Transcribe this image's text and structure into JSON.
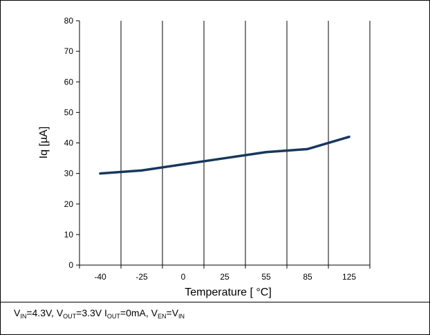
{
  "chart_data": {
    "type": "line",
    "title": "",
    "xlabel": "Temperature [ °C]",
    "ylabel": "Iq [µA]",
    "categories": [
      "-40",
      "-25",
      "0",
      "25",
      "55",
      "85",
      "125"
    ],
    "x": [
      -40,
      -25,
      0,
      25,
      55,
      85,
      125
    ],
    "ylim": [
      0,
      80
    ],
    "yticks": [
      "0",
      "10",
      "20",
      "30",
      "40",
      "50",
      "60",
      "70",
      "80"
    ],
    "grid": "vertical",
    "legend": "none",
    "series": [
      {
        "values": [
          30,
          31,
          33,
          35,
          37,
          38,
          42
        ]
      }
    ],
    "line_color": "#17375e"
  },
  "caption": {
    "v": "V",
    "in_sub": "IN",
    "vin_value": "=4.3V, V",
    "out_sub": "OUT",
    "vout_value": "=3.3V I",
    "iout_value": "=0mA, V",
    "en_sub": "EN",
    "eq_v": "=V",
    "in_sub2": "IN"
  }
}
